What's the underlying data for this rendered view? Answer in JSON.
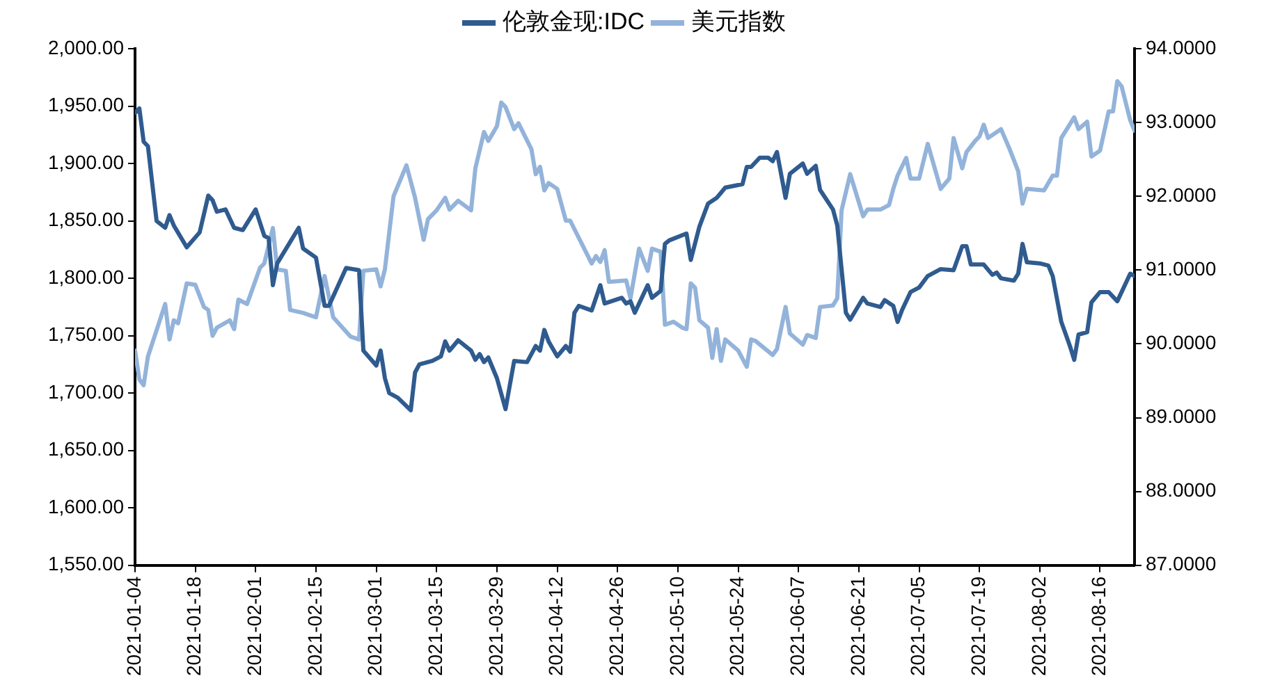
{
  "chart_data": {
    "type": "line",
    "legend": "top",
    "grid": false,
    "marker": "none",
    "line_style": "solid",
    "xlim": [
      "2021-01-04",
      "2021-08-24"
    ],
    "xticks": [
      "2021-01-04",
      "2021-01-18",
      "2021-02-01",
      "2021-02-15",
      "2021-03-01",
      "2021-03-15",
      "2021-03-29",
      "2021-04-12",
      "2021-04-26",
      "2021-05-10",
      "2021-05-24",
      "2021-06-07",
      "2021-06-21",
      "2021-07-05",
      "2021-07-19",
      "2021-08-02",
      "2021-08-16"
    ],
    "ylim": [
      1550,
      2000
    ],
    "yticks": [
      {
        "value": 1550,
        "label": "1,550.00"
      },
      {
        "value": 1600,
        "label": "1,600.00"
      },
      {
        "value": 1650,
        "label": "1,650.00"
      },
      {
        "value": 1700,
        "label": "1,700.00"
      },
      {
        "value": 1750,
        "label": "1,750.00"
      },
      {
        "value": 1800,
        "label": "1,800.00"
      },
      {
        "value": 1850,
        "label": "1,850.00"
      },
      {
        "value": 1900,
        "label": "1,900.00"
      },
      {
        "value": 1950,
        "label": "1,950.00"
      },
      {
        "value": 2000,
        "label": "2,000.00"
      }
    ],
    "y2lim": [
      87,
      94
    ],
    "y2ticks": [
      {
        "value": 87,
        "label": "87.0000"
      },
      {
        "value": 88,
        "label": "88.0000"
      },
      {
        "value": 89,
        "label": "89.0000"
      },
      {
        "value": 90,
        "label": "90.0000"
      },
      {
        "value": 91,
        "label": "91.0000"
      },
      {
        "value": 92,
        "label": "92.0000"
      },
      {
        "value": 93,
        "label": "93.0000"
      },
      {
        "value": 94,
        "label": "94.0000"
      }
    ],
    "series": [
      {
        "name": "伦敦金现:IDC",
        "color": "#2f5b8f",
        "x": [
          "2021-01-04",
          "2021-01-05",
          "2021-01-06",
          "2021-01-07",
          "2021-01-09",
          "2021-01-11",
          "2021-01-12",
          "2021-01-13",
          "2021-01-16",
          "2021-01-19",
          "2021-01-21",
          "2021-01-22",
          "2021-01-23",
          "2021-01-25",
          "2021-01-27",
          "2021-01-29",
          "2021-02-01",
          "2021-02-03",
          "2021-02-04",
          "2021-02-05",
          "2021-02-06",
          "2021-02-11",
          "2021-02-12",
          "2021-02-15",
          "2021-02-17",
          "2021-02-18",
          "2021-02-22",
          "2021-02-25",
          "2021-02-26",
          "2021-03-01",
          "2021-03-02",
          "2021-03-03",
          "2021-03-04",
          "2021-03-06",
          "2021-03-09",
          "2021-03-10",
          "2021-03-11",
          "2021-03-14",
          "2021-03-16",
          "2021-03-17",
          "2021-03-18",
          "2021-03-20",
          "2021-03-23",
          "2021-03-24",
          "2021-03-25",
          "2021-03-26",
          "2021-03-27",
          "2021-03-29",
          "2021-03-31",
          "2021-04-02",
          "2021-04-05",
          "2021-04-07",
          "2021-04-08",
          "2021-04-09",
          "2021-04-10",
          "2021-04-12",
          "2021-04-14",
          "2021-04-15",
          "2021-04-16",
          "2021-04-17",
          "2021-04-20",
          "2021-04-22",
          "2021-04-23",
          "2021-04-27",
          "2021-04-28",
          "2021-04-29",
          "2021-04-30",
          "2021-05-03",
          "2021-05-04",
          "2021-05-06",
          "2021-05-07",
          "2021-05-08",
          "2021-05-12",
          "2021-05-13",
          "2021-05-15",
          "2021-05-17",
          "2021-05-19",
          "2021-05-21",
          "2021-05-25",
          "2021-05-26",
          "2021-05-27",
          "2021-05-29",
          "2021-05-31",
          "2021-06-01",
          "2021-06-02",
          "2021-06-04",
          "2021-06-05",
          "2021-06-08",
          "2021-06-09",
          "2021-06-11",
          "2021-06-12",
          "2021-06-15",
          "2021-06-16",
          "2021-06-18",
          "2021-06-19",
          "2021-06-22",
          "2021-06-23",
          "2021-06-26",
          "2021-06-27",
          "2021-06-29",
          "2021-06-30",
          "2021-07-01",
          "2021-07-03",
          "2021-07-05",
          "2021-07-07",
          "2021-07-10",
          "2021-07-13",
          "2021-07-15",
          "2021-07-16",
          "2021-07-17",
          "2021-07-20",
          "2021-07-22",
          "2021-07-23",
          "2021-07-24",
          "2021-07-27",
          "2021-07-28",
          "2021-07-29",
          "2021-07-30",
          "2021-08-02",
          "2021-08-04",
          "2021-08-05",
          "2021-08-07",
          "2021-08-09",
          "2021-08-10",
          "2021-08-11",
          "2021-08-13",
          "2021-08-14",
          "2021-08-16",
          "2021-08-18",
          "2021-08-20",
          "2021-08-23",
          "2021-08-24"
        ],
        "values": [
          1944,
          1948,
          1919,
          1915,
          1850,
          1844,
          1855,
          1846,
          1827,
          1840,
          1872,
          1868,
          1858,
          1860,
          1844,
          1842,
          1860,
          1837,
          1835,
          1794,
          1813,
          1844,
          1826,
          1818,
          1776,
          1776,
          1809,
          1807,
          1737,
          1724,
          1737,
          1713,
          1700,
          1696,
          1685,
          1718,
          1725,
          1728,
          1732,
          1745,
          1737,
          1746,
          1737,
          1729,
          1734,
          1727,
          1731,
          1713,
          1686,
          1728,
          1727,
          1741,
          1737,
          1755,
          1745,
          1732,
          1741,
          1736,
          1770,
          1776,
          1772,
          1794,
          1778,
          1783,
          1778,
          1780,
          1770,
          1794,
          1783,
          1789,
          1830,
          1833,
          1839,
          1816,
          1845,
          1865,
          1870,
          1879,
          1882,
          1897,
          1897,
          1905,
          1905,
          1902,
          1910,
          1870,
          1891,
          1900,
          1891,
          1898,
          1877,
          1860,
          1846,
          1770,
          1764,
          1783,
          1778,
          1775,
          1781,
          1776,
          1762,
          1772,
          1788,
          1792,
          1802,
          1808,
          1807,
          1828,
          1828,
          1812,
          1812,
          1803,
          1805,
          1800,
          1798,
          1804,
          1830,
          1814,
          1813,
          1811,
          1802,
          1762,
          1741,
          1729,
          1751,
          1753,
          1779,
          1788,
          1788,
          1780,
          1804,
          1802
        ]
      },
      {
        "name": "美元指数",
        "color": "#93b3da",
        "axis": "y2",
        "x": [
          "2021-01-04",
          "2021-01-05",
          "2021-01-06",
          "2021-01-07",
          "2021-01-11",
          "2021-01-12",
          "2021-01-13",
          "2021-01-14",
          "2021-01-16",
          "2021-01-18",
          "2021-01-20",
          "2021-01-21",
          "2021-01-22",
          "2021-01-23",
          "2021-01-26",
          "2021-01-27",
          "2021-01-28",
          "2021-01-30",
          "2021-02-02",
          "2021-02-03",
          "2021-02-05",
          "2021-02-06",
          "2021-02-08",
          "2021-02-09",
          "2021-02-12",
          "2021-02-15",
          "2021-02-17",
          "2021-02-19",
          "2021-02-23",
          "2021-02-25",
          "2021-02-26",
          "2021-03-01",
          "2021-03-02",
          "2021-03-03",
          "2021-03-05",
          "2021-03-08",
          "2021-03-10",
          "2021-03-12",
          "2021-03-13",
          "2021-03-15",
          "2021-03-17",
          "2021-03-18",
          "2021-03-20",
          "2021-03-23",
          "2021-03-24",
          "2021-03-26",
          "2021-03-27",
          "2021-03-29",
          "2021-03-30",
          "2021-03-31",
          "2021-04-02",
          "2021-04-03",
          "2021-04-06",
          "2021-04-07",
          "2021-04-08",
          "2021-04-09",
          "2021-04-10",
          "2021-04-12",
          "2021-04-14",
          "2021-04-15",
          "2021-04-20",
          "2021-04-21",
          "2021-04-22",
          "2021-04-23",
          "2021-04-24",
          "2021-04-28",
          "2021-04-29",
          "2021-05-01",
          "2021-05-03",
          "2021-05-04",
          "2021-05-06",
          "2021-05-07",
          "2021-05-09",
          "2021-05-11",
          "2021-05-12",
          "2021-05-13",
          "2021-05-14",
          "2021-05-15",
          "2021-05-17",
          "2021-05-18",
          "2021-05-19",
          "2021-05-20",
          "2021-05-21",
          "2021-05-24",
          "2021-05-26",
          "2021-05-27",
          "2021-05-28",
          "2021-06-01",
          "2021-06-02",
          "2021-06-04",
          "2021-06-05",
          "2021-06-08",
          "2021-06-09",
          "2021-06-11",
          "2021-06-12",
          "2021-06-15",
          "2021-06-16",
          "2021-06-17",
          "2021-06-19",
          "2021-06-22",
          "2021-06-23",
          "2021-06-26",
          "2021-06-28",
          "2021-06-29",
          "2021-06-30",
          "2021-07-02",
          "2021-07-03",
          "2021-07-05",
          "2021-07-07",
          "2021-07-10",
          "2021-07-12",
          "2021-07-13",
          "2021-07-15",
          "2021-07-16",
          "2021-07-18",
          "2021-07-19",
          "2021-07-20",
          "2021-07-21",
          "2021-07-24",
          "2021-07-26",
          "2021-07-28",
          "2021-07-29",
          "2021-07-30",
          "2021-08-03",
          "2021-08-05",
          "2021-08-06",
          "2021-08-07",
          "2021-08-10",
          "2021-08-11",
          "2021-08-13",
          "2021-08-14",
          "2021-08-16",
          "2021-08-18",
          "2021-08-19",
          "2021-08-20",
          "2021-08-21",
          "2021-08-23",
          "2021-08-24"
        ],
        "values": [
          89.91,
          89.52,
          89.44,
          89.83,
          90.54,
          90.06,
          90.32,
          90.28,
          90.82,
          90.8,
          90.5,
          90.46,
          90.11,
          90.22,
          90.32,
          90.2,
          90.6,
          90.54,
          91.03,
          91.09,
          91.57,
          91.01,
          90.99,
          90.46,
          90.42,
          90.36,
          90.92,
          90.36,
          90.1,
          90.06,
          90.99,
          91.01,
          90.78,
          91.01,
          92.0,
          92.42,
          91.98,
          91.41,
          91.69,
          91.81,
          91.98,
          91.82,
          91.94,
          91.81,
          92.38,
          92.87,
          92.75,
          92.95,
          93.27,
          93.21,
          92.91,
          92.99,
          92.64,
          92.3,
          92.4,
          92.08,
          92.18,
          92.1,
          91.67,
          91.67,
          91.09,
          91.19,
          91.11,
          91.27,
          90.84,
          90.86,
          90.62,
          91.29,
          90.99,
          91.29,
          91.25,
          90.26,
          90.3,
          90.22,
          90.2,
          90.82,
          90.76,
          90.32,
          90.22,
          89.81,
          90.2,
          89.77,
          90.06,
          89.91,
          89.69,
          90.06,
          90.04,
          89.85,
          89.93,
          90.5,
          90.14,
          89.99,
          90.12,
          90.08,
          90.5,
          90.52,
          90.62,
          91.81,
          92.3,
          91.73,
          91.82,
          91.82,
          91.88,
          92.1,
          92.28,
          92.52,
          92.24,
          92.24,
          92.71,
          92.1,
          92.24,
          92.79,
          92.38,
          92.6,
          92.75,
          92.81,
          92.97,
          92.79,
          92.91,
          92.64,
          92.34,
          91.9,
          92.1,
          92.08,
          92.28,
          92.28,
          92.79,
          93.07,
          92.91,
          93.01,
          92.54,
          92.62,
          93.15,
          93.15,
          93.56,
          93.49,
          93.03,
          92.89
        ]
      }
    ]
  }
}
